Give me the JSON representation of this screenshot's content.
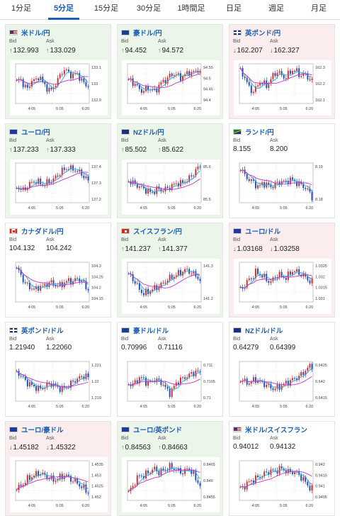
{
  "tabs": [
    "1分足",
    "5分足",
    "15分足",
    "30分足",
    "1時間足",
    "日足",
    "週足",
    "月足"
  ],
  "active_tab": 1,
  "labels": {
    "bid": "Bid",
    "ask": "Ask"
  },
  "colors": {
    "up": "#2e9b2e",
    "down": "#d02a2a",
    "candle_up": "#d32f2f",
    "candle_down": "#1f4fbf",
    "ma_short": "#29a8d8",
    "ma_long": "#c832c8",
    "link": "#1a5fb4"
  },
  "pairs": [
    {
      "name": "米ドル/円",
      "flag": "us",
      "trend": "up",
      "bid": "132.993",
      "ask": "133.029",
      "x_ticks": [
        "4:05",
        "5:05",
        "6:20"
      ],
      "y_ticks": [
        "133.1",
        "133",
        "132.9"
      ],
      "chart_data": {
        "type": "candlestick",
        "title": "",
        "x_ticks": [
          "4:05",
          "5:05",
          "6:20"
        ],
        "ylim": [
          132.88,
          133.12
        ],
        "y_ticks": [
          133.1,
          133,
          132.9
        ],
        "series_shape": [
          0.55,
          0.62,
          0.45,
          0.35,
          0.6,
          0.55,
          0.72,
          0.5,
          0.4,
          0.3,
          0.45,
          0.6,
          0.8,
          0.85,
          0.75,
          0.7,
          0.78,
          0.6,
          0.5,
          0.45
        ]
      }
    },
    {
      "name": "豪ドル/円",
      "flag": "au",
      "trend": "up",
      "bid": "94.452",
      "ask": "94.572",
      "x_ticks": [
        "4:05",
        "5:05",
        "6:20"
      ],
      "y_ticks": [
        "94.55",
        "94.5",
        "94.45",
        "94.4"
      ],
      "chart_data": {
        "type": "candlestick",
        "title": "",
        "x_ticks": [
          "4:05",
          "5:05",
          "6:20"
        ],
        "ylim": [
          94.38,
          94.57
        ],
        "y_ticks": [
          94.55,
          94.5,
          94.45,
          94.4
        ],
        "series_shape": [
          0.6,
          0.55,
          0.45,
          0.35,
          0.3,
          0.4,
          0.35,
          0.3,
          0.45,
          0.55,
          0.6,
          0.7,
          0.75,
          0.7,
          0.65,
          0.72,
          0.8,
          0.75,
          0.85,
          0.8
        ]
      }
    },
    {
      "name": "英ポンド/円",
      "flag": "gb",
      "trend": "down",
      "bid": "162.207",
      "ask": "162.327",
      "x_ticks": [
        "4:05",
        "5:05",
        "6:20"
      ],
      "y_ticks": [
        "162.3",
        "162.2",
        "162.1"
      ],
      "chart_data": {
        "type": "candlestick",
        "title": "",
        "x_ticks": [
          "4:05",
          "5:05",
          "6:20"
        ],
        "ylim": [
          162.08,
          162.35
        ],
        "y_ticks": [
          162.3,
          162.2,
          162.1
        ],
        "series_shape": [
          0.8,
          0.7,
          0.45,
          0.3,
          0.35,
          0.55,
          0.5,
          0.45,
          0.6,
          0.75,
          0.8,
          0.7,
          0.65,
          0.78,
          0.85,
          0.8,
          0.7,
          0.75,
          0.65,
          0.55
        ]
      }
    },
    {
      "name": "ユーロ/円",
      "flag": "eu",
      "trend": "up",
      "bid": "137.233",
      "ask": "137.333",
      "x_ticks": [
        "4:05",
        "5:05",
        "6:20"
      ],
      "y_ticks": [
        "137.4",
        "137.3",
        "137.2"
      ],
      "chart_data": {
        "type": "candlestick",
        "title": "",
        "x_ticks": [
          "4:05",
          "5:05",
          "6:20"
        ],
        "ylim": [
          137.15,
          137.42
        ],
        "y_ticks": [
          137.4,
          137.3,
          137.2
        ],
        "series_shape": [
          0.4,
          0.35,
          0.3,
          0.45,
          0.5,
          0.55,
          0.5,
          0.45,
          0.5,
          0.55,
          0.6,
          0.7,
          0.8,
          0.85,
          0.9,
          0.85,
          0.8,
          0.75,
          0.65,
          0.55
        ]
      }
    },
    {
      "name": "NZドル/円",
      "flag": "nz",
      "trend": "up",
      "bid": "85.502",
      "ask": "85.622",
      "x_ticks": [
        "4:05",
        "5:05",
        "6:20"
      ],
      "y_ticks": [
        "85.6",
        "85.5"
      ],
      "chart_data": {
        "type": "candlestick",
        "title": "",
        "x_ticks": [
          "4:05",
          "5:05",
          "6:20"
        ],
        "ylim": [
          85.42,
          85.66
        ],
        "y_ticks": [
          85.6,
          85.5
        ],
        "series_shape": [
          0.55,
          0.5,
          0.45,
          0.4,
          0.35,
          0.3,
          0.25,
          0.3,
          0.35,
          0.3,
          0.35,
          0.4,
          0.45,
          0.5,
          0.48,
          0.55,
          0.6,
          0.7,
          0.85,
          0.9
        ]
      }
    },
    {
      "name": "ランド/円",
      "flag": "za",
      "trend": "flat",
      "bid": "8.155",
      "ask": "8.200",
      "x_ticks": [
        "4:05",
        "5:05",
        "6:20"
      ],
      "y_ticks": [
        "8.19",
        "8.18"
      ],
      "chart_data": {
        "type": "candlestick",
        "title": "",
        "x_ticks": [
          "4:05",
          "5:05",
          "6:20"
        ],
        "ylim": [
          8.17,
          8.2
        ],
        "y_ticks": [
          8.19,
          8.18
        ],
        "series_shape": [
          0.9,
          0.7,
          0.6,
          0.55,
          0.45,
          0.4,
          0.5,
          0.45,
          0.4,
          0.45,
          0.5,
          0.55,
          0.5,
          0.6,
          0.55,
          0.5,
          0.45,
          0.4,
          0.3,
          0.15
        ]
      }
    },
    {
      "name": "カナダドル/円",
      "flag": "ca",
      "trend": "flat",
      "bid": "104.132",
      "ask": "104.242",
      "x_ticks": [
        "4:05",
        "5:05",
        "6:20"
      ],
      "y_ticks": [
        "104.3",
        "104.25",
        "104.2",
        "104.15"
      ],
      "chart_data": {
        "type": "candlestick",
        "title": "",
        "x_ticks": [
          "4:05",
          "5:05",
          "6:20"
        ],
        "ylim": [
          104.12,
          104.32
        ],
        "y_ticks": [
          104.3,
          104.25,
          104.2,
          104.15
        ],
        "series_shape": [
          0.85,
          0.7,
          0.5,
          0.4,
          0.35,
          0.3,
          0.4,
          0.38,
          0.45,
          0.5,
          0.45,
          0.4,
          0.45,
          0.5,
          0.55,
          0.5,
          0.6,
          0.55,
          0.45,
          0.3
        ]
      }
    },
    {
      "name": "スイスフラン/円",
      "flag": "ch",
      "trend": "up",
      "bid": "141.237",
      "ask": "141.377",
      "x_ticks": [
        "4:05",
        "5:05",
        "6:20"
      ],
      "y_ticks": [
        "141.3",
        "141.2"
      ],
      "chart_data": {
        "type": "candlestick",
        "title": "",
        "x_ticks": [
          "4:05",
          "5:05",
          "6:20"
        ],
        "ylim": [
          141.1,
          141.38
        ],
        "y_ticks": [
          141.3,
          141.2
        ],
        "series_shape": [
          0.7,
          0.6,
          0.45,
          0.3,
          0.2,
          0.25,
          0.3,
          0.35,
          0.4,
          0.45,
          0.55,
          0.6,
          0.65,
          0.7,
          0.75,
          0.8,
          0.78,
          0.72,
          0.65,
          0.55
        ]
      }
    },
    {
      "name": "ユーロ/ドル",
      "flag": "eu-us",
      "trend": "down",
      "bid": "1.03168",
      "ask": "1.03258",
      "x_ticks": [
        "4:05",
        "5:05",
        "6:20"
      ],
      "y_ticks": [
        "1.0325",
        "1.032",
        "1.0315",
        "1.031"
      ],
      "chart_data": {
        "type": "candlestick",
        "title": "",
        "x_ticks": [
          "4:05",
          "5:05",
          "6:20"
        ],
        "ylim": [
          1.0308,
          1.0328
        ],
        "y_ticks": [
          1.0325,
          1.032,
          1.0315,
          1.031
        ],
        "series_shape": [
          0.3,
          0.4,
          0.55,
          0.6,
          0.75,
          0.7,
          0.65,
          0.55,
          0.5,
          0.6,
          0.7,
          0.65,
          0.6,
          0.7,
          0.8,
          0.75,
          0.7,
          0.65,
          0.55,
          0.5
        ]
      }
    },
    {
      "name": "英ポンド/ドル",
      "flag": "gb-us",
      "trend": "flat",
      "bid": "1.21940",
      "ask": "1.22060",
      "x_ticks": [
        "4:05",
        "5:05",
        "6:20"
      ],
      "y_ticks": [
        "1.221",
        "1.22",
        "1.219"
      ],
      "chart_data": {
        "type": "candlestick",
        "title": "",
        "x_ticks": [
          "4:05",
          "5:05",
          "6:20"
        ],
        "ylim": [
          1.2185,
          1.2215
        ],
        "y_ticks": [
          1.221,
          1.22,
          1.219
        ],
        "series_shape": [
          0.75,
          0.65,
          0.55,
          0.45,
          0.4,
          0.35,
          0.3,
          0.35,
          0.4,
          0.45,
          0.4,
          0.35,
          0.3,
          0.35,
          0.4,
          0.5,
          0.55,
          0.6,
          0.65,
          0.6
        ]
      }
    },
    {
      "name": "豪ドル/ドル",
      "flag": "au-us",
      "trend": "flat",
      "bid": "0.70996",
      "ask": "0.71116",
      "x_ticks": [
        "4:05",
        "5:05",
        "6:20"
      ],
      "y_ticks": [
        "0.711",
        "0.7105",
        "0.71"
      ],
      "chart_data": {
        "type": "candlestick",
        "title": "",
        "x_ticks": [
          "4:05",
          "5:05",
          "6:20"
        ],
        "ylim": [
          0.7095,
          0.7113
        ],
        "y_ticks": [
          0.711,
          0.7105,
          0.71
        ],
        "series_shape": [
          0.45,
          0.4,
          0.5,
          0.6,
          0.55,
          0.45,
          0.5,
          0.55,
          0.5,
          0.45,
          0.3,
          0.2,
          0.35,
          0.5,
          0.55,
          0.6,
          0.65,
          0.7,
          0.75,
          0.7
        ]
      }
    },
    {
      "name": "NZドル/ドル",
      "flag": "nz-us",
      "trend": "flat",
      "bid": "0.64279",
      "ask": "0.64399",
      "x_ticks": [
        "4:05",
        "5:05",
        "6:20"
      ],
      "y_ticks": [
        "0.6425",
        "0.642",
        "0.6415"
      ],
      "chart_data": {
        "type": "candlestick",
        "title": "",
        "x_ticks": [
          "4:05",
          "5:05",
          "6:20"
        ],
        "ylim": [
          0.6412,
          0.6429
        ],
        "y_ticks": [
          0.6425,
          0.642,
          0.6415
        ],
        "series_shape": [
          0.55,
          0.5,
          0.45,
          0.5,
          0.55,
          0.5,
          0.45,
          0.4,
          0.35,
          0.3,
          0.35,
          0.4,
          0.45,
          0.5,
          0.55,
          0.6,
          0.65,
          0.75,
          0.85,
          0.9
        ]
      }
    },
    {
      "name": "ユーロ/豪ドル",
      "flag": "eu-au",
      "trend": "down",
      "bid": "1.45182",
      "ask": "1.45322",
      "x_ticks": [
        "4:05",
        "5:05",
        "6:20"
      ],
      "y_ticks": [
        "1.4535",
        "1.453",
        "1.4525",
        "1.452"
      ],
      "chart_data": {
        "type": "candlestick",
        "title": "",
        "x_ticks": [
          "4:05",
          "5:05",
          "6:20"
        ],
        "ylim": [
          1.4515,
          1.4538
        ],
        "y_ticks": [
          1.4535,
          1.453,
          1.4525,
          1.452
        ],
        "series_shape": [
          0.3,
          0.35,
          0.45,
          0.55,
          0.6,
          0.65,
          0.7,
          0.65,
          0.6,
          0.55,
          0.5,
          0.55,
          0.6,
          0.65,
          0.55,
          0.5,
          0.45,
          0.35,
          0.3,
          0.2
        ]
      }
    },
    {
      "name": "ユーロ/英ポンド",
      "flag": "eu-gb",
      "trend": "up",
      "bid": "0.84563",
      "ask": "0.84663",
      "x_ticks": [
        "4:05",
        "5:05",
        "6:20"
      ],
      "y_ticks": [
        "0.8465",
        "0.846",
        "0.8455"
      ],
      "chart_data": {
        "type": "candlestick",
        "title": "",
        "x_ticks": [
          "4:05",
          "5:05",
          "6:20"
        ],
        "ylim": [
          0.8452,
          0.8468
        ],
        "y_ticks": [
          0.8465,
          0.846,
          0.8455
        ],
        "series_shape": [
          0.2,
          0.35,
          0.5,
          0.65,
          0.6,
          0.7,
          0.75,
          0.8,
          0.7,
          0.75,
          0.8,
          0.85,
          0.8,
          0.75,
          0.7,
          0.75,
          0.8,
          0.7,
          0.5,
          0.4
        ]
      }
    },
    {
      "name": "米ドル/スイスフラン",
      "flag": "us-ch",
      "trend": "flat",
      "bid": "0.94012",
      "ask": "0.94132",
      "x_ticks": [
        "4:05",
        "5:05",
        "6:20"
      ],
      "y_ticks": [
        "0.942",
        "0.9415",
        "0.941",
        "0.9405"
      ],
      "chart_data": {
        "type": "candlestick",
        "title": "",
        "x_ticks": [
          "4:05",
          "5:05",
          "6:20"
        ],
        "ylim": [
          0.9402,
          0.9423
        ],
        "y_ticks": [
          0.942,
          0.9415,
          0.941,
          0.9405
        ],
        "series_shape": [
          0.3,
          0.35,
          0.45,
          0.5,
          0.55,
          0.6,
          0.65,
          0.7,
          0.75,
          0.72,
          0.78,
          0.8,
          0.75,
          0.7,
          0.72,
          0.68,
          0.6,
          0.5,
          0.35,
          0.3
        ]
      }
    }
  ]
}
